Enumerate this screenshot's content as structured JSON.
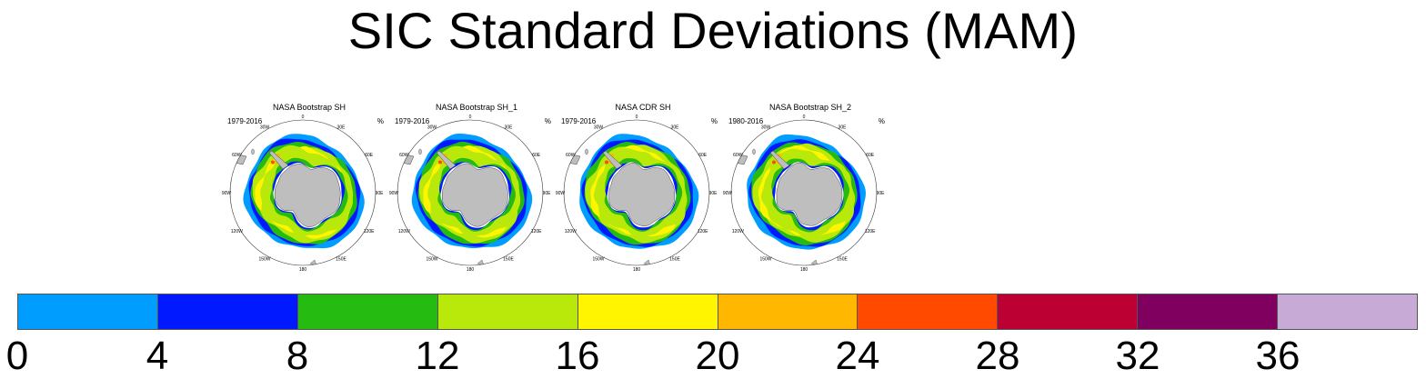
{
  "figure": {
    "title": "SIC Standard Deviations (MAM)",
    "units": "%"
  },
  "panels": [
    {
      "title": "NASA Bootstrap SH",
      "period": "1979-2016",
      "units": "%"
    },
    {
      "title": "NASA Bootstrap SH_1",
      "period": "1979-2016",
      "units": "%"
    },
    {
      "title": "NASA CDR SH",
      "period": "1979-2016",
      "units": "%"
    },
    {
      "title": "NASA Bootstrap SH_2",
      "period": "1980-2016",
      "units": "%"
    }
  ],
  "longitude_labels": [
    "0",
    "30E",
    "60E",
    "90E",
    "120E",
    "150E",
    "180",
    "150W",
    "120W",
    "90W",
    "60W",
    "30W"
  ],
  "colorbar": {
    "colors": [
      "#009dff",
      "#0019ff",
      "#26bb11",
      "#b9e90a",
      "#fff500",
      "#ffb700",
      "#ff4a00",
      "#bd0033",
      "#7f005f",
      "#c8aad6"
    ],
    "ticks": [
      "0",
      "4",
      "8",
      "12",
      "16",
      "20",
      "24",
      "28",
      "32",
      "36"
    ]
  }
}
